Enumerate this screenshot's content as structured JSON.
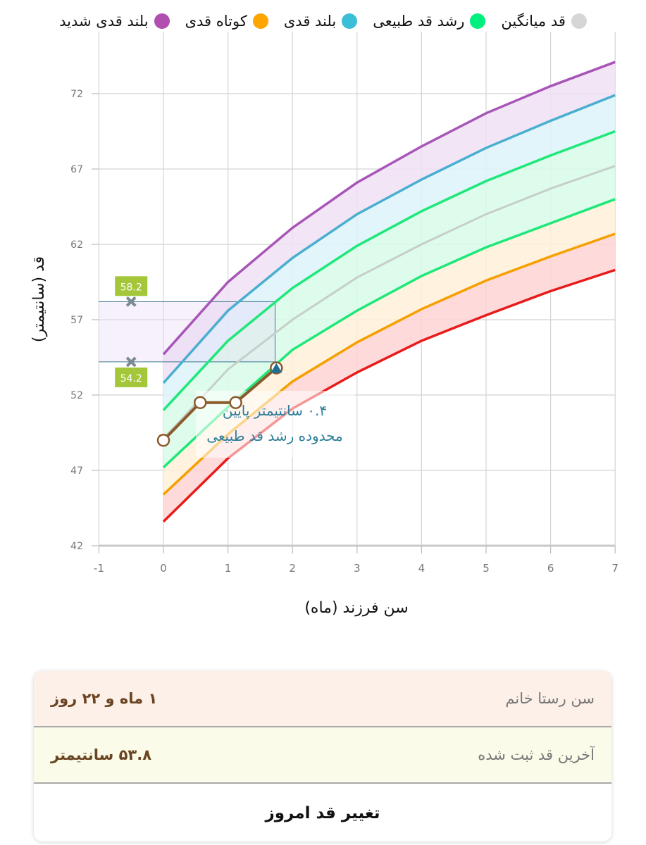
{
  "legend": [
    {
      "label": "بلند قدی شدید",
      "color": "#b04fb0"
    },
    {
      "label": "کوتاه قدی",
      "color": "#ffa500"
    },
    {
      "label": "بلند قدی",
      "color": "#3bbfd6"
    },
    {
      "label": "رشد قد طبیعی",
      "color": "#00f080"
    },
    {
      "label": "قد میانگین",
      "color": "#d6d6d6"
    }
  ],
  "chart_data": {
    "type": "line",
    "xlabel": "سن فرزند (ماه)",
    "ylabel": "قد (سانتیمتر)",
    "xlim": [
      -1,
      7
    ],
    "ylim": [
      42,
      75
    ],
    "x_ticks": [
      "-1",
      "0",
      "1",
      "2",
      "3",
      "4",
      "5",
      "6",
      "7"
    ],
    "y_ticks": [
      "42",
      "47",
      "52",
      "57",
      "62",
      "67",
      "72"
    ],
    "grid": true,
    "x": [
      0,
      1,
      2,
      3,
      4,
      5,
      6,
      7
    ],
    "curves": [
      {
        "key": "severe_short",
        "color": "#e81a1a",
        "values": [
          43.6,
          47.8,
          51.1,
          53.5,
          55.6,
          57.3,
          58.9,
          60.3
        ]
      },
      {
        "key": "short",
        "color": "#f5a000",
        "values": [
          45.4,
          49.4,
          52.9,
          55.5,
          57.7,
          59.6,
          61.2,
          62.7
        ]
      },
      {
        "key": "normal_low",
        "color": "#1ee87a",
        "values": [
          47.2,
          51.2,
          55.0,
          57.6,
          59.9,
          61.8,
          63.4,
          65.0
        ]
      },
      {
        "key": "average",
        "color": "#c6cfc9",
        "values": [
          49.1,
          53.7,
          57.0,
          59.8,
          62.0,
          64.0,
          65.7,
          67.2
        ]
      },
      {
        "key": "normal_high",
        "color": "#1ee87a",
        "values": [
          51.0,
          55.6,
          59.1,
          61.9,
          64.2,
          66.2,
          67.9,
          69.5
        ]
      },
      {
        "key": "tall",
        "color": "#4aaed0",
        "values": [
          52.8,
          57.6,
          61.1,
          64.0,
          66.3,
          68.4,
          70.2,
          71.9
        ]
      },
      {
        "key": "severe_tall",
        "color": "#a855b8",
        "values": [
          54.7,
          59.5,
          63.1,
          66.1,
          68.5,
          70.7,
          72.5,
          74.1
        ]
      }
    ],
    "bands": [
      {
        "from": "severe_short",
        "to": "short",
        "color": "#ffd4d4"
      },
      {
        "from": "short",
        "to": "normal_low",
        "color": "#fff0d8"
      },
      {
        "from": "normal_low",
        "to": "normal_high",
        "color": "#d8fbe9"
      },
      {
        "from": "normal_high",
        "to": "tall",
        "color": "#ddf3fa"
      },
      {
        "from": "tall",
        "to": "severe_tall",
        "color": "#f0e2f5"
      }
    ],
    "child": {
      "color": "#8b5a2b",
      "points": [
        {
          "x": 0,
          "y": 49.0
        },
        {
          "x": 0.57,
          "y": 51.5
        },
        {
          "x": 1.12,
          "y": 51.5
        },
        {
          "x": 1.75,
          "y": 53.8
        }
      ]
    },
    "normal_range_at_current_age": {
      "x": 1.73,
      "low": 54.2,
      "high": 58.2,
      "low_label": "54.2",
      "high_label": "58.2",
      "marker_x": -0.5,
      "label_color": "#a4c639"
    },
    "annotation": {
      "line1": "۰.۴ سانتیمتر پایین",
      "line2": "محدوده رشد قد طبیعی",
      "color": "#2e7d9a"
    }
  },
  "info": {
    "age_label": "سن رستا خانم",
    "age_value": "۱ ماه و ۲۲ روز",
    "height_label": "آخرین قد ثبت شده",
    "height_value": "۵۳.۸ سانتیمتر",
    "change_button": "تغییر قد امروز"
  }
}
